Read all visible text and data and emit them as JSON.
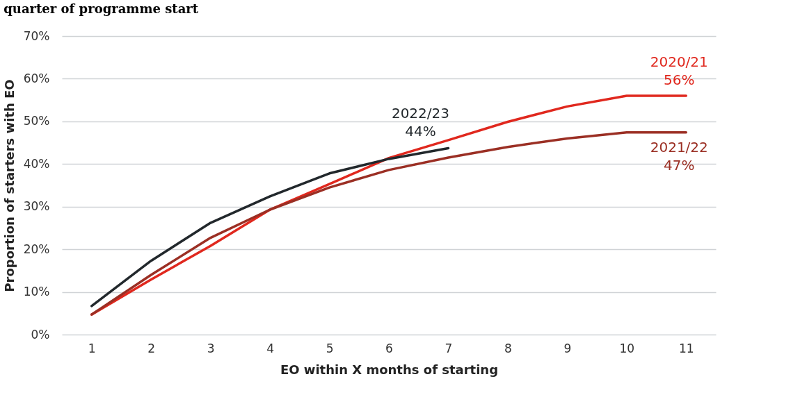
{
  "chart_data": {
    "type": "line",
    "title": "quarter of programme start",
    "xlabel": "EO within X months of starting",
    "ylabel": "Proportion of starters with EO",
    "categories": [
      "1",
      "2",
      "3",
      "4",
      "5",
      "6",
      "7",
      "8",
      "9",
      "10",
      "11"
    ],
    "series": [
      {
        "name": "2020/21",
        "color": "#e0281e",
        "values": [
          4.7,
          12.9,
          20.8,
          29.3,
          35.3,
          41.4,
          45.6,
          49.9,
          53.5,
          56,
          56
        ],
        "value_labels": [
          null,
          null,
          null,
          null,
          null,
          null,
          null,
          null,
          null,
          null,
          "56%"
        ]
      },
      {
        "name": "2021/22",
        "color": "#9b2f24",
        "values": [
          4.7,
          14,
          22.7,
          29.3,
          34.5,
          38.6,
          41.5,
          44,
          46,
          47.4,
          47.4
        ],
        "value_labels": [
          null,
          null,
          null,
          null,
          null,
          null,
          null,
          null,
          null,
          null,
          "47%"
        ]
      },
      {
        "name": "2022/23",
        "color": "#22282c",
        "values": [
          6.7,
          17.3,
          26.2,
          32.4,
          37.8,
          41.2,
          43.7,
          null,
          null,
          null,
          null
        ],
        "value_labels": [
          null,
          null,
          null,
          null,
          null,
          null,
          "44%",
          null,
          null,
          null,
          null
        ]
      }
    ],
    "ylim": [
      0,
      70
    ],
    "yticks": [
      {
        "value": 0,
        "label": "0%"
      },
      {
        "value": 10,
        "label": "10%"
      },
      {
        "value": 20,
        "label": "20%"
      },
      {
        "value": 30,
        "label": "30%"
      },
      {
        "value": 40,
        "label": "40%"
      },
      {
        "value": 50,
        "label": "50%"
      },
      {
        "value": 60,
        "label": "60%"
      },
      {
        "value": 70,
        "label": "70%"
      }
    ],
    "grid": "y",
    "marker": "none",
    "line_style": "solid"
  }
}
